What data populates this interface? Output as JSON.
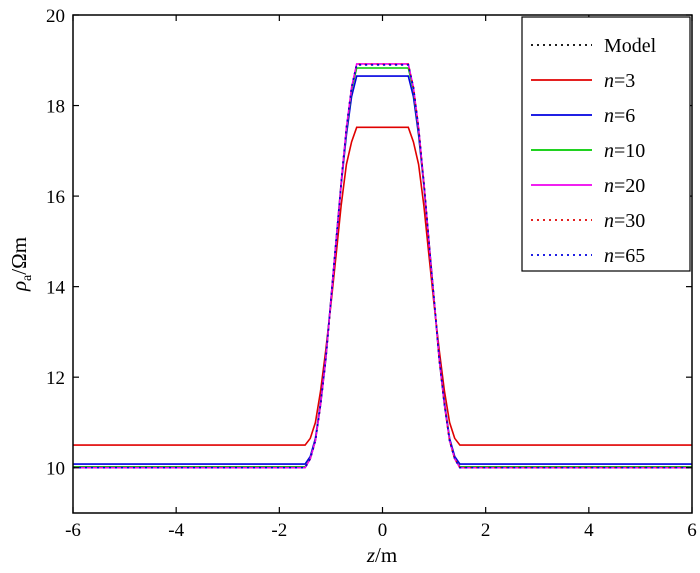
{
  "chart_data": {
    "type": "line",
    "xlabel": {
      "var": "z",
      "unit": "/m"
    },
    "ylabel": {
      "var": "ρ",
      "sub": "a",
      "unit": "/Ωm"
    },
    "xlim": [
      -6,
      6
    ],
    "ylim": [
      9,
      20
    ],
    "x_ticks": [
      -6,
      -4,
      -2,
      0,
      2,
      4,
      6
    ],
    "y_ticks": [
      10,
      12,
      14,
      16,
      18,
      20
    ],
    "x_tick_labels": [
      "-6",
      "-4",
      "-2",
      "0",
      "2",
      "4",
      "6"
    ],
    "y_tick_labels": [
      "10",
      "12",
      "14",
      "16",
      "18",
      "20"
    ],
    "grid": false,
    "legend_position": "top-right",
    "series": [
      {
        "name": "Model",
        "color": "#000000",
        "dash": "dotted",
        "x": [
          -6,
          -1.5,
          -1.4,
          -1.3,
          -1.2,
          -1.1,
          -1.0,
          -0.9,
          -0.8,
          -0.7,
          -0.6,
          -0.5,
          0.5,
          0.6,
          0.7,
          0.8,
          0.9,
          1.0,
          1.1,
          1.2,
          1.3,
          1.4,
          1.5,
          6
        ],
        "y": [
          10.0,
          10.0,
          10.2,
          10.6,
          11.4,
          12.4,
          13.7,
          15.0,
          16.3,
          17.5,
          18.4,
          18.9,
          18.9,
          18.4,
          17.5,
          16.3,
          15.0,
          13.7,
          12.4,
          11.4,
          10.6,
          10.2,
          10.0,
          10.0
        ]
      },
      {
        "name": "n=3",
        "color": "#e00000",
        "dash": "solid",
        "x": [
          -6,
          -1.5,
          -1.4,
          -1.3,
          -1.2,
          -1.1,
          -1.0,
          -0.9,
          -0.8,
          -0.7,
          -0.6,
          -0.5,
          0.5,
          0.6,
          0.7,
          0.8,
          0.9,
          1.0,
          1.1,
          1.2,
          1.3,
          1.4,
          1.5,
          6
        ],
        "y": [
          10.5,
          10.5,
          10.65,
          11.0,
          11.7,
          12.6,
          13.6,
          14.7,
          15.8,
          16.7,
          17.2,
          17.52,
          17.52,
          17.2,
          16.7,
          15.8,
          14.7,
          13.6,
          12.6,
          11.7,
          11.0,
          10.65,
          10.5,
          10.5
        ]
      },
      {
        "name": "n=6",
        "color": "#0000e0",
        "dash": "solid",
        "x": [
          -6,
          -1.5,
          -1.4,
          -1.3,
          -1.2,
          -1.1,
          -1.0,
          -0.9,
          -0.8,
          -0.7,
          -0.6,
          -0.5,
          0.5,
          0.6,
          0.7,
          0.8,
          0.9,
          1.0,
          1.1,
          1.2,
          1.3,
          1.4,
          1.5,
          6
        ],
        "y": [
          10.08,
          10.08,
          10.25,
          10.65,
          11.45,
          12.45,
          13.7,
          15.0,
          16.25,
          17.35,
          18.2,
          18.65,
          18.65,
          18.2,
          17.35,
          16.25,
          15.0,
          13.7,
          12.45,
          11.45,
          10.65,
          10.25,
          10.08,
          10.08
        ]
      },
      {
        "name": "n=10",
        "color": "#00cc00",
        "dash": "solid",
        "x": [
          -6,
          -1.5,
          -1.4,
          -1.3,
          -1.2,
          -1.1,
          -1.0,
          -0.9,
          -0.8,
          -0.7,
          -0.6,
          -0.5,
          0.5,
          0.6,
          0.7,
          0.8,
          0.9,
          1.0,
          1.1,
          1.2,
          1.3,
          1.4,
          1.5,
          6
        ],
        "y": [
          10.02,
          10.02,
          10.2,
          10.6,
          11.4,
          12.4,
          13.7,
          15.0,
          16.3,
          17.45,
          18.35,
          18.83,
          18.83,
          18.35,
          17.45,
          16.3,
          15.0,
          13.7,
          12.4,
          11.4,
          10.6,
          10.2,
          10.02,
          10.02
        ]
      },
      {
        "name": "n=20",
        "color": "#ee00ee",
        "dash": "solid",
        "x": [
          -6,
          -1.5,
          -1.4,
          -1.3,
          -1.2,
          -1.1,
          -1.0,
          -0.9,
          -0.8,
          -0.7,
          -0.6,
          -0.5,
          0.5,
          0.6,
          0.7,
          0.8,
          0.9,
          1.0,
          1.1,
          1.2,
          1.3,
          1.4,
          1.5,
          6
        ],
        "y": [
          10.0,
          10.0,
          10.2,
          10.6,
          11.4,
          12.4,
          13.7,
          15.0,
          16.3,
          17.5,
          18.4,
          18.92,
          18.92,
          18.4,
          17.5,
          16.3,
          15.0,
          13.7,
          12.4,
          11.4,
          10.6,
          10.2,
          10.0,
          10.0
        ]
      },
      {
        "name": "n=30",
        "color": "#e00000",
        "dash": "dotted",
        "x": [
          -6,
          -1.5,
          -1.4,
          -1.3,
          -1.2,
          -1.1,
          -1.0,
          -0.9,
          -0.8,
          -0.7,
          -0.6,
          -0.5,
          0.5,
          0.6,
          0.7,
          0.8,
          0.9,
          1.0,
          1.1,
          1.2,
          1.3,
          1.4,
          1.5,
          6
        ],
        "y": [
          10.0,
          10.0,
          10.2,
          10.6,
          11.4,
          12.4,
          13.7,
          15.0,
          16.3,
          17.5,
          18.4,
          18.91,
          18.91,
          18.4,
          17.5,
          16.3,
          15.0,
          13.7,
          12.4,
          11.4,
          10.6,
          10.2,
          10.0,
          10.0
        ]
      },
      {
        "name": "n=65",
        "color": "#0000e0",
        "dash": "dotted",
        "x": [
          -6,
          -1.5,
          -1.4,
          -1.3,
          -1.2,
          -1.1,
          -1.0,
          -0.9,
          -0.8,
          -0.7,
          -0.6,
          -0.5,
          0.5,
          0.6,
          0.7,
          0.8,
          0.9,
          1.0,
          1.1,
          1.2,
          1.3,
          1.4,
          1.5,
          6
        ],
        "y": [
          10.0,
          10.0,
          10.2,
          10.6,
          11.4,
          12.4,
          13.7,
          15.0,
          16.3,
          17.5,
          18.4,
          18.9,
          18.9,
          18.4,
          17.5,
          16.3,
          15.0,
          13.7,
          12.4,
          11.4,
          10.6,
          10.2,
          10.0,
          10.0
        ]
      }
    ],
    "legend_items": [
      {
        "prefix": "",
        "rest": "Model"
      },
      {
        "prefix": "n",
        "rest": "=3"
      },
      {
        "prefix": "n",
        "rest": "=6"
      },
      {
        "prefix": "n",
        "rest": "=10"
      },
      {
        "prefix": "n",
        "rest": "=20"
      },
      {
        "prefix": "n",
        "rest": "=30"
      },
      {
        "prefix": "n",
        "rest": "=65"
      }
    ]
  }
}
